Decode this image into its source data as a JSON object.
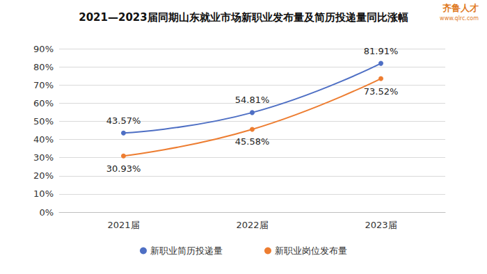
{
  "chart_data": {
    "type": "line",
    "title": "2021—2023届同期山东就业市场新职业发布量及简历投递量同比涨幅",
    "annotations": [
      "齐鲁人才",
      "www.qlrc.com"
    ],
    "categories": [
      "2021届",
      "2022届",
      "2023届"
    ],
    "series": [
      {
        "name": "新职业简历投递量",
        "color": "#4e6fc4",
        "marker": "circle",
        "line_style": "solid",
        "values": [
          43.57,
          54.81,
          81.91
        ],
        "value_labels": [
          "43.57%",
          "54.81%",
          "81.91%"
        ]
      },
      {
        "name": "新职业岗位发布量",
        "color": "#ed7d31",
        "marker": "circle",
        "line_style": "solid",
        "values": [
          30.93,
          45.58,
          73.52
        ],
        "value_labels": [
          "30.93%",
          "45.58%",
          "73.52%"
        ]
      }
    ],
    "ylim": [
      0,
      90
    ],
    "yticks": [
      {
        "value": 0,
        "label": "0%"
      },
      {
        "value": 10,
        "label": "10%"
      },
      {
        "value": 20,
        "label": "20%"
      },
      {
        "value": 30,
        "label": "30%"
      },
      {
        "value": 40,
        "label": "40%"
      },
      {
        "value": 50,
        "label": "50%"
      },
      {
        "value": 60,
        "label": "60%"
      },
      {
        "value": 70,
        "label": "70%"
      },
      {
        "value": 80,
        "label": "80%"
      },
      {
        "value": 90,
        "label": "90%"
      }
    ],
    "grid": true,
    "legend": "bottom",
    "data_labels": true
  }
}
